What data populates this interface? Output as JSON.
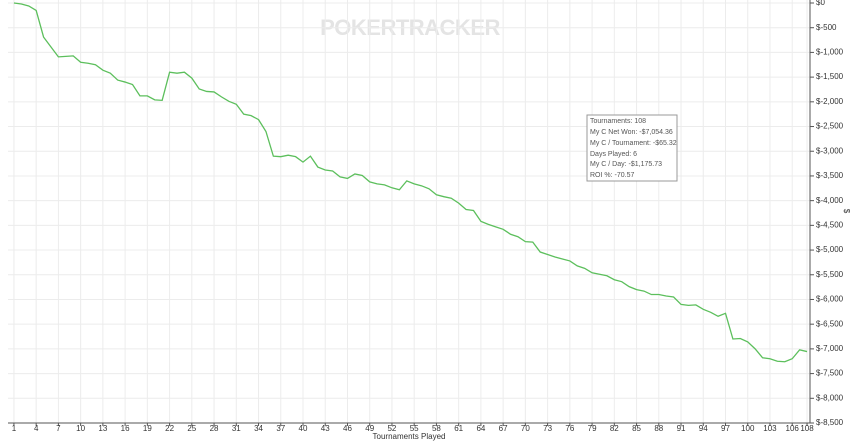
{
  "chart_data": {
    "type": "line",
    "watermark": "POKERTRACKER",
    "xlabel": "Tournaments Played",
    "ylabel": "$",
    "x": [
      1,
      2,
      3,
      4,
      5,
      6,
      7,
      8,
      9,
      10,
      11,
      12,
      13,
      14,
      15,
      16,
      17,
      18,
      19,
      20,
      21,
      22,
      23,
      24,
      25,
      26,
      27,
      28,
      29,
      30,
      31,
      32,
      33,
      34,
      35,
      36,
      37,
      38,
      39,
      40,
      41,
      42,
      43,
      44,
      45,
      46,
      47,
      48,
      49,
      50,
      51,
      52,
      53,
      54,
      55,
      56,
      57,
      58,
      59,
      60,
      61,
      62,
      63,
      64,
      65,
      66,
      67,
      68,
      69,
      70,
      71,
      72,
      73,
      74,
      75,
      76,
      77,
      78,
      79,
      80,
      81,
      82,
      83,
      84,
      85,
      86,
      87,
      88,
      89,
      90,
      91,
      92,
      93,
      94,
      95,
      96,
      97,
      98,
      99,
      100,
      101,
      102,
      103,
      104,
      105,
      106,
      107,
      108
    ],
    "series": [
      {
        "color": "#5cbf5c",
        "values": [
          0,
          -20,
          -60,
          -150,
          -690,
          -890,
          -1090,
          -1080,
          -1070,
          -1200,
          -1220,
          -1250,
          -1360,
          -1420,
          -1560,
          -1600,
          -1650,
          -1880,
          -1880,
          -1960,
          -1970,
          -1400,
          -1420,
          -1400,
          -1520,
          -1740,
          -1790,
          -1800,
          -1900,
          -1990,
          -2050,
          -2250,
          -2280,
          -2360,
          -2600,
          -3100,
          -3110,
          -3080,
          -3110,
          -3220,
          -3100,
          -3320,
          -3380,
          -3400,
          -3520,
          -3550,
          -3460,
          -3490,
          -3620,
          -3660,
          -3680,
          -3740,
          -3780,
          -3600,
          -3660,
          -3700,
          -3760,
          -3880,
          -3920,
          -3950,
          -4050,
          -4180,
          -4200,
          -4420,
          -4480,
          -4530,
          -4580,
          -4680,
          -4730,
          -4830,
          -4840,
          -5040,
          -5090,
          -5140,
          -5180,
          -5220,
          -5320,
          -5370,
          -5460,
          -5490,
          -5520,
          -5600,
          -5640,
          -5740,
          -5800,
          -5830,
          -5900,
          -5900,
          -5930,
          -5950,
          -6100,
          -6120,
          -6110,
          -6200,
          -6260,
          -6340,
          -6280,
          -6800,
          -6790,
          -6860,
          -7000,
          -7180,
          -7200,
          -7250,
          -7260,
          -7200,
          -7020,
          -7054.36
        ]
      }
    ],
    "xlim": [
      0.2,
      108.4
    ],
    "xticks": [
      1,
      4,
      7,
      10,
      13,
      16,
      19,
      22,
      25,
      28,
      31,
      34,
      37,
      40,
      43,
      46,
      49,
      52,
      55,
      58,
      61,
      64,
      67,
      70,
      73,
      76,
      79,
      82,
      85,
      88,
      91,
      94,
      97,
      100,
      103,
      106,
      108
    ],
    "ylim": [
      -8500,
      0
    ],
    "yticks": [
      {
        "value": 0,
        "label": "$0"
      },
      {
        "value": -500,
        "label": "$-500"
      },
      {
        "value": -1000,
        "label": "$-1,000"
      },
      {
        "value": -1500,
        "label": "$-1,500"
      },
      {
        "value": -2000,
        "label": "$-2,000"
      },
      {
        "value": -2500,
        "label": "$-2,500"
      },
      {
        "value": -3000,
        "label": "$-3,000"
      },
      {
        "value": -3500,
        "label": "$-3,500"
      },
      {
        "value": -4000,
        "label": "$-4,000"
      },
      {
        "value": -4500,
        "label": "$-4,500"
      },
      {
        "value": -5000,
        "label": "$-5,000"
      },
      {
        "value": -5500,
        "label": "$-5,500"
      },
      {
        "value": -6000,
        "label": "$-6,000"
      },
      {
        "value": -6500,
        "label": "$-6,500"
      },
      {
        "value": -7000,
        "label": "$-7,000"
      },
      {
        "value": -7500,
        "label": "$-7,500"
      },
      {
        "value": -8000,
        "label": "$-8,000"
      },
      {
        "value": -8500,
        "label": "$-8,500"
      }
    ],
    "grid": true,
    "tooltip": [
      "Tournaments: 108",
      "My C Net Won: -$7,054.36",
      "My C / Tournament: -$65.32",
      "Days Played: 6",
      "My C / Day: -$1,175.73",
      "ROI %: -70.57"
    ]
  }
}
